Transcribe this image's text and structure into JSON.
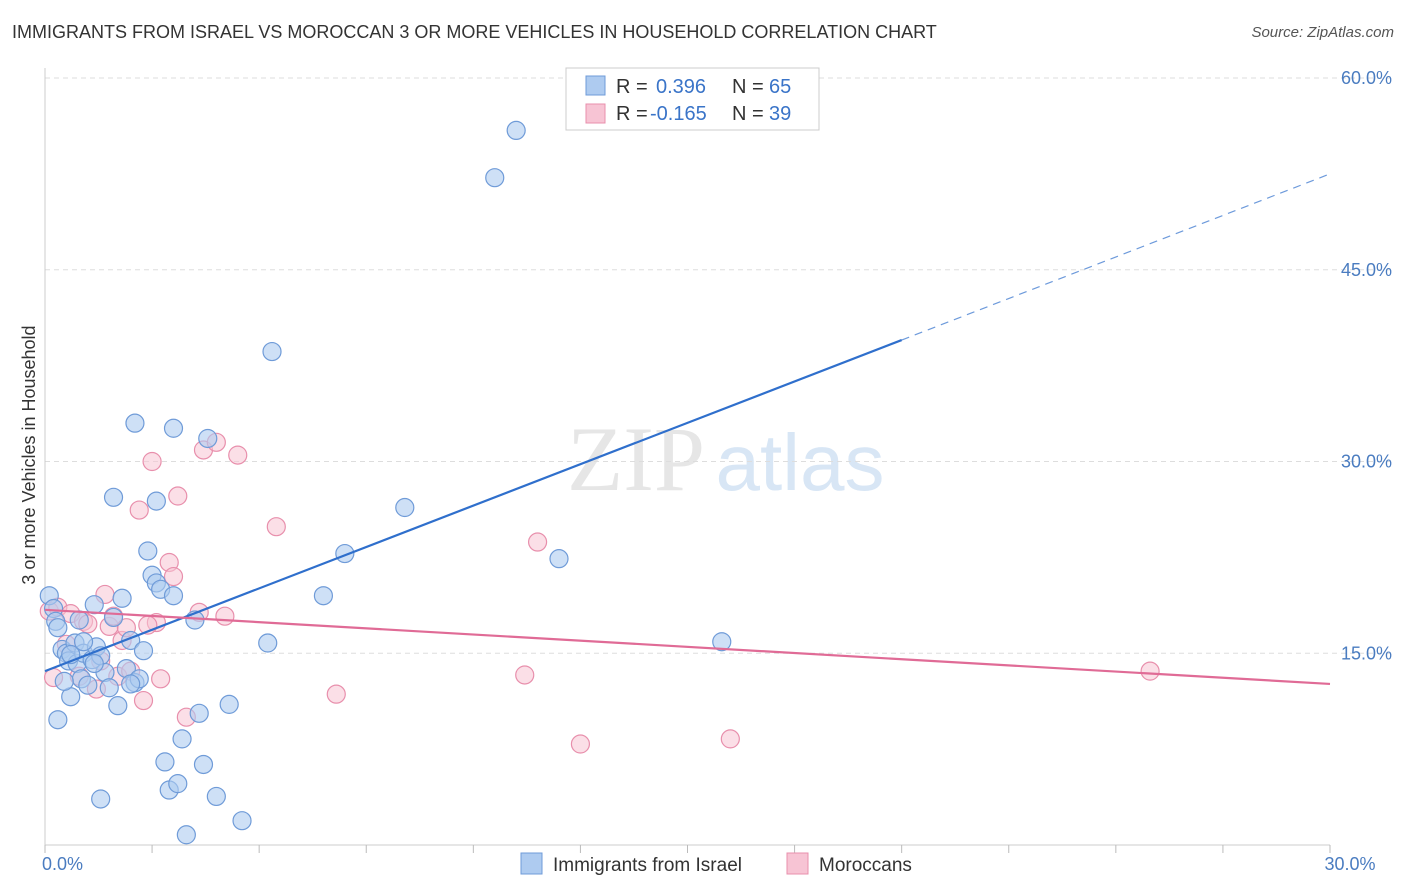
{
  "title": "IMMIGRANTS FROM ISRAEL VS MOROCCAN 3 OR MORE VEHICLES IN HOUSEHOLD CORRELATION CHART",
  "source": "Source: ZipAtlas.com",
  "watermark": {
    "zip": "ZIP",
    "atlas": "atlas"
  },
  "colors": {
    "israel_fill": "#aecbf0",
    "israel_stroke": "#6f9bd8",
    "israel_line": "#2f6fcc",
    "moroccan_fill": "#f7c4d4",
    "moroccan_stroke": "#e88fac",
    "moroccan_line": "#e06b96",
    "tick_label": "#4a7cc0",
    "grid": "#dddddd"
  },
  "legend": {
    "rows": [
      {
        "r_label": "R =",
        "r_value": "0.396",
        "n_label": "N =",
        "n_value": "65"
      },
      {
        "r_label": "R =",
        "r_value": "-0.165",
        "n_label": "N =",
        "n_value": "39"
      }
    ]
  },
  "chart_data": {
    "type": "scatter",
    "xlabel": "",
    "ylabel": "3 or more Vehicles in Household",
    "xlim": [
      0,
      30
    ],
    "ylim": [
      0,
      60
    ],
    "x_tick_labels": [
      {
        "value": 0,
        "label": "0.0%"
      },
      {
        "value": 30,
        "label": "30.0%"
      }
    ],
    "y_tick_labels": [
      {
        "value": 15,
        "label": "15.0%"
      },
      {
        "value": 30,
        "label": "30.0%"
      },
      {
        "value": 45,
        "label": "45.0%"
      },
      {
        "value": 60,
        "label": "60.0%"
      }
    ],
    "legend_position": "bottom",
    "grid": true,
    "series": [
      {
        "name": "Immigrants from Israel",
        "r": 0.396,
        "n": 65,
        "trend": {
          "x0": 0,
          "y0": 13.6,
          "x1": 20,
          "y1": 39.5,
          "dashed_to_x": 30,
          "dashed_to_y": 52.5
        },
        "points": [
          [
            0.1,
            19.5
          ],
          [
            0.2,
            18.5
          ],
          [
            0.25,
            17.5
          ],
          [
            0.3,
            17.0
          ],
          [
            0.4,
            15.3
          ],
          [
            0.5,
            15.0
          ],
          [
            0.55,
            14.4
          ],
          [
            0.6,
            11.6
          ],
          [
            0.7,
            15.8
          ],
          [
            0.75,
            14.2
          ],
          [
            0.8,
            17.6
          ],
          [
            0.85,
            13.0
          ],
          [
            0.9,
            15.0
          ],
          [
            1.0,
            12.5
          ],
          [
            1.1,
            14.5
          ],
          [
            1.15,
            18.8
          ],
          [
            1.2,
            15.5
          ],
          [
            1.3,
            14.8
          ],
          [
            1.4,
            13.5
          ],
          [
            1.5,
            12.3
          ],
          [
            1.6,
            17.8
          ],
          [
            1.7,
            10.9
          ],
          [
            1.8,
            19.3
          ],
          [
            1.9,
            13.8
          ],
          [
            2.0,
            16.0
          ],
          [
            2.1,
            12.7
          ],
          [
            2.2,
            13.0
          ],
          [
            2.3,
            15.2
          ],
          [
            2.5,
            21.1
          ],
          [
            2.6,
            20.5
          ],
          [
            2.7,
            20.0
          ],
          [
            2.8,
            6.5
          ],
          [
            2.9,
            4.3
          ],
          [
            3.0,
            19.5
          ],
          [
            3.1,
            4.8
          ],
          [
            3.2,
            8.3
          ],
          [
            3.3,
            0.8
          ],
          [
            3.5,
            17.6
          ],
          [
            3.6,
            10.3
          ],
          [
            3.7,
            6.3
          ],
          [
            4.0,
            3.8
          ],
          [
            4.3,
            11.0
          ],
          [
            4.6,
            1.9
          ],
          [
            5.2,
            15.8
          ],
          [
            5.3,
            38.6
          ],
          [
            6.5,
            19.5
          ],
          [
            7.0,
            22.8
          ],
          [
            8.4,
            26.4
          ],
          [
            10.5,
            52.2
          ],
          [
            11.0,
            55.9
          ],
          [
            12.0,
            22.4
          ],
          [
            15.8,
            15.9
          ],
          [
            0.3,
            9.8
          ],
          [
            1.6,
            27.2
          ],
          [
            2.1,
            33.0
          ],
          [
            2.6,
            26.9
          ],
          [
            3.0,
            32.6
          ],
          [
            3.8,
            31.8
          ],
          [
            2.4,
            23.0
          ],
          [
            1.3,
            3.6
          ],
          [
            0.45,
            12.8
          ],
          [
            0.6,
            14.9
          ],
          [
            0.9,
            15.9
          ],
          [
            1.15,
            14.2
          ],
          [
            2.0,
            12.6
          ]
        ]
      },
      {
        "name": "Moroccans",
        "r": -0.165,
        "n": 39,
        "trend": {
          "x0": 0,
          "y0": 18.4,
          "x1": 30,
          "y1": 12.6
        },
        "points": [
          [
            0.1,
            18.3
          ],
          [
            0.2,
            13.1
          ],
          [
            0.3,
            18.6
          ],
          [
            0.5,
            15.7
          ],
          [
            0.6,
            18.1
          ],
          [
            0.8,
            13.2
          ],
          [
            0.9,
            17.5
          ],
          [
            1.0,
            17.3
          ],
          [
            1.2,
            12.2
          ],
          [
            1.3,
            14.4
          ],
          [
            1.4,
            19.6
          ],
          [
            1.5,
            17.1
          ],
          [
            1.6,
            17.9
          ],
          [
            1.7,
            13.2
          ],
          [
            1.8,
            16.0
          ],
          [
            1.9,
            17.0
          ],
          [
            2.0,
            13.6
          ],
          [
            2.2,
            26.2
          ],
          [
            2.3,
            11.3
          ],
          [
            2.5,
            30.0
          ],
          [
            2.6,
            17.4
          ],
          [
            2.7,
            13.0
          ],
          [
            2.9,
            22.1
          ],
          [
            3.0,
            21.0
          ],
          [
            3.1,
            27.3
          ],
          [
            3.3,
            10.0
          ],
          [
            3.6,
            18.2
          ],
          [
            3.7,
            30.9
          ],
          [
            4.0,
            31.5
          ],
          [
            4.2,
            17.9
          ],
          [
            4.5,
            30.5
          ],
          [
            5.4,
            24.9
          ],
          [
            6.8,
            11.8
          ],
          [
            11.2,
            13.3
          ],
          [
            11.5,
            23.7
          ],
          [
            12.5,
            7.9
          ],
          [
            16.0,
            8.3
          ],
          [
            25.8,
            13.6
          ],
          [
            2.4,
            17.2
          ]
        ]
      }
    ]
  },
  "bottom_legend": [
    {
      "label": "Immigrants from Israel"
    },
    {
      "label": "Moroccans"
    }
  ]
}
